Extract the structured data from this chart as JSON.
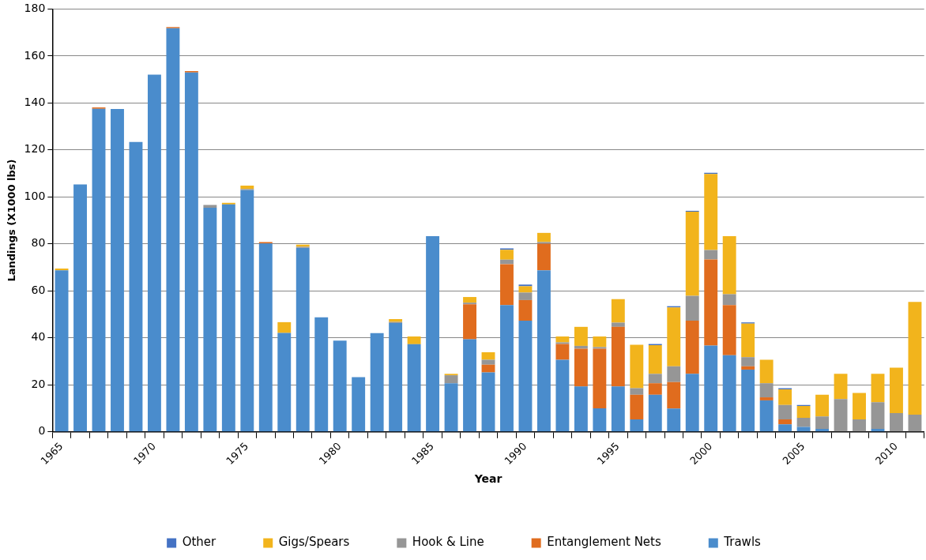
{
  "chart_data": {
    "type": "bar",
    "stacked": true,
    "xlabel": "Year",
    "ylabel": "Landings (X1000 lbs)",
    "categories": [
      "1965",
      null,
      null,
      null,
      null,
      "1970",
      null,
      null,
      null,
      null,
      "1975",
      null,
      null,
      null,
      null,
      "1980",
      null,
      null,
      null,
      null,
      "1985",
      null,
      null,
      null,
      null,
      "1990",
      null,
      null,
      null,
      null,
      "1995",
      null,
      null,
      null,
      null,
      "2000",
      null,
      null,
      null,
      null,
      "2005",
      null,
      null,
      null,
      null,
      "2010",
      null
    ],
    "series": [
      {
        "name": "Trawls",
        "color": "#4a8ccc",
        "values": [
          68.8,
          105.3,
          137.5,
          137.4,
          123.4,
          152.1,
          171.8,
          153,
          95.4,
          96.8,
          102.9,
          80.2,
          42.1,
          78.3,
          48.8,
          38.8,
          23.3,
          42,
          46.3,
          37.3,
          83.3,
          20.7,
          39.4,
          25.3,
          54,
          47.3,
          68.8,
          30.7,
          19.3,
          10,
          19.3,
          5.3,
          15.8,
          9.9,
          24.7,
          36.7,
          32.6,
          26.5,
          13.4,
          3.2,
          2.1,
          1.3,
          0,
          0,
          1.3,
          0,
          0
        ]
      },
      {
        "name": "Entanglement Nets",
        "color": "#e06c1e",
        "values": [
          0,
          0,
          0.6,
          0,
          0,
          0,
          0.5,
          0.6,
          0,
          0,
          0,
          0.6,
          0,
          0,
          0,
          0,
          0,
          0,
          0,
          0,
          0,
          0,
          14.9,
          3.3,
          17.4,
          8.8,
          11.3,
          6.7,
          16.1,
          25.4,
          25.4,
          10.5,
          4.9,
          11.3,
          22.6,
          36.7,
          21.4,
          1.4,
          1.3,
          2.1,
          0,
          0,
          0,
          0,
          0,
          0,
          0
        ]
      },
      {
        "name": "Hook & Line",
        "color": "#969696",
        "values": [
          0,
          0,
          0,
          0,
          0,
          0,
          0,
          0,
          1.2,
          0,
          0.5,
          0,
          0,
          0.5,
          0,
          0,
          0,
          0,
          0.5,
          0,
          0,
          3.4,
          0.7,
          2.1,
          1.9,
          3.2,
          0.7,
          0.7,
          1.2,
          0.7,
          1.8,
          2.8,
          4,
          6.7,
          10.6,
          4,
          4.6,
          3.9,
          6,
          6.1,
          3.9,
          5.3,
          14,
          5.3,
          11.3,
          8,
          7.3
        ]
      },
      {
        "name": "Gigs/Spears",
        "color": "#f2b41c",
        "values": [
          0.7,
          0,
          0,
          0,
          0,
          0,
          0,
          0,
          0,
          0.7,
          1.4,
          0,
          4.6,
          0.9,
          0,
          0,
          0,
          0,
          1.2,
          3.3,
          0,
          0.6,
          2.4,
          3.2,
          4.2,
          2.7,
          3.9,
          2.5,
          8.1,
          4.5,
          10,
          18.5,
          12.2,
          25.1,
          35.8,
          32.4,
          24.7,
          14.3,
          10,
          6.7,
          5,
          9.2,
          10.7,
          11.3,
          12.1,
          19.3,
          48
        ]
      },
      {
        "name": "Other",
        "color": "#4472c4",
        "values": [
          0,
          0,
          0,
          0,
          0,
          0,
          0,
          0,
          0,
          0,
          0,
          0,
          0,
          0,
          0,
          0,
          0,
          0,
          0,
          0,
          0,
          0,
          0,
          0,
          0.6,
          0.7,
          0,
          0,
          0,
          0,
          0,
          0,
          0.5,
          0.5,
          0.4,
          0.5,
          0,
          0.5,
          0,
          0.5,
          0.4,
          0,
          0,
          0,
          0,
          0,
          0
        ]
      }
    ],
    "ylim": [
      0,
      180
    ],
    "yticks": [
      0,
      20,
      40,
      60,
      80,
      100,
      120,
      140,
      160,
      180
    ],
    "grid": "y",
    "legend": "bottom"
  }
}
